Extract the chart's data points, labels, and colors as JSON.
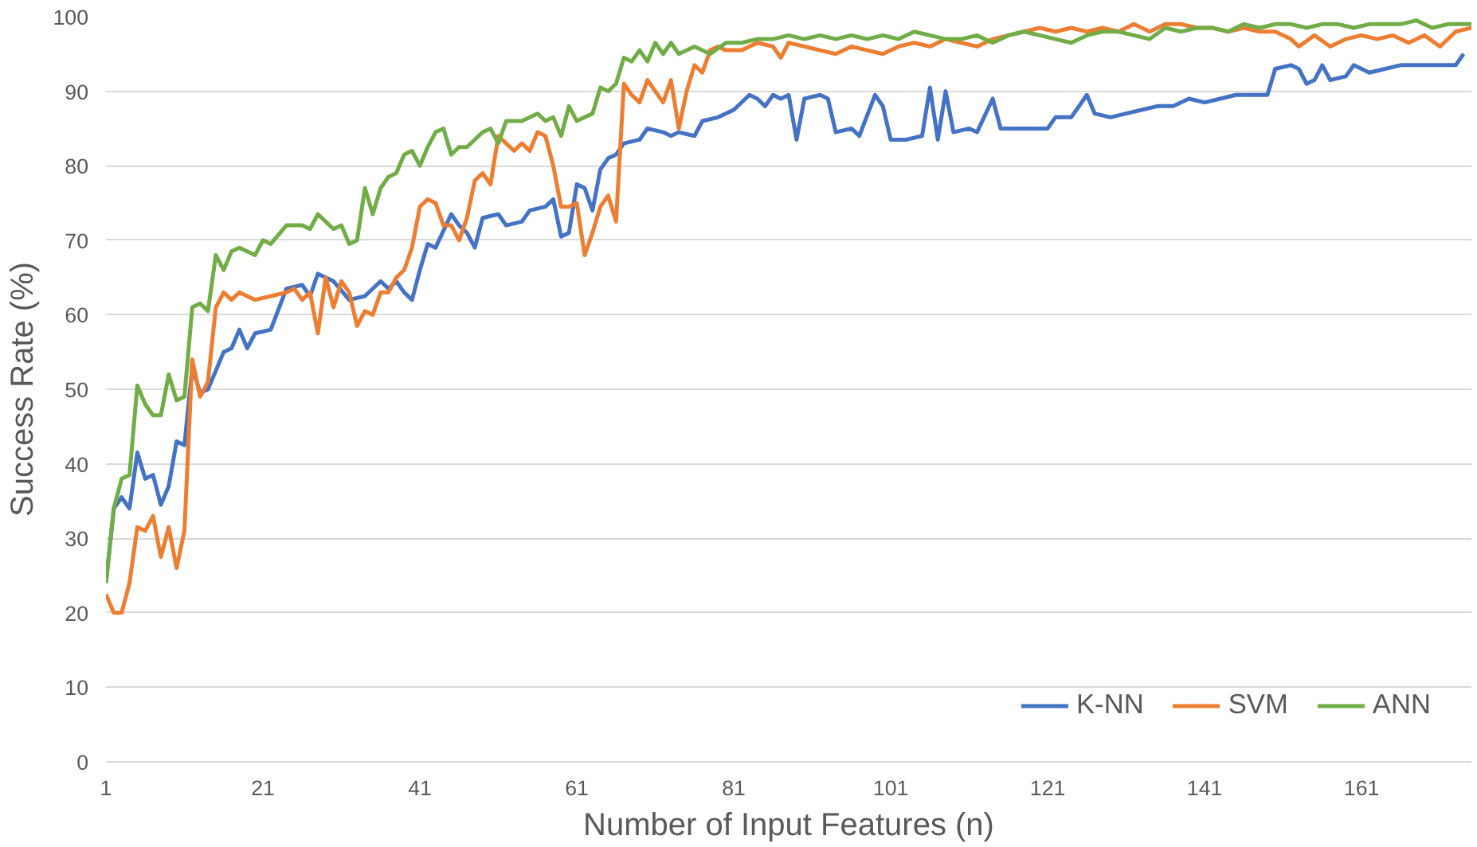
{
  "chart_data": {
    "type": "line",
    "xlabel": "Number of Input Features (n)",
    "ylabel": "Success Rate (%)",
    "xlim": [
      1,
      175
    ],
    "xticks": [
      1,
      21,
      41,
      61,
      81,
      101,
      121,
      141,
      161
    ],
    "ylim": [
      0,
      100
    ],
    "yticks": [
      0,
      10,
      20,
      30,
      40,
      50,
      60,
      70,
      80,
      90,
      100
    ],
    "grid": "y",
    "legend": "bottom right",
    "line_style": "solid",
    "marker": "none",
    "series": [
      {
        "name": "K-NN",
        "color": "#4472c4",
        "x": [
          1,
          2,
          3,
          4,
          5,
          6,
          7,
          8,
          9,
          10,
          11,
          12,
          13,
          14,
          15,
          16,
          17,
          18,
          19,
          20,
          22,
          24,
          26,
          27,
          28,
          30,
          32,
          34,
          36,
          37,
          38,
          39,
          40,
          41,
          42,
          43,
          45,
          46,
          47,
          48,
          49,
          51,
          52,
          54,
          55,
          57,
          58,
          59,
          60,
          61,
          62,
          63,
          64,
          65,
          66,
          67,
          69,
          70,
          72,
          73,
          74,
          76,
          77,
          79,
          81,
          83,
          84,
          85,
          86,
          87,
          88,
          89,
          90,
          92,
          93,
          94,
          96,
          97,
          99,
          100,
          101,
          103,
          105,
          106,
          107,
          108,
          109,
          111,
          112,
          114,
          115,
          117,
          119,
          121,
          122,
          124,
          126,
          127,
          129,
          131,
          133,
          135,
          137,
          139,
          141,
          143,
          145,
          149,
          150,
          152,
          153,
          154,
          155,
          156,
          157,
          159,
          160,
          162,
          164,
          166,
          170,
          173,
          174
        ],
        "values": [
          24,
          34,
          35.5,
          34,
          41.5,
          38,
          38.5,
          34.5,
          37,
          43,
          42.5,
          53,
          49.5,
          50,
          52.5,
          55,
          55.5,
          58,
          55.5,
          57.5,
          58,
          63.5,
          64,
          62.5,
          65.5,
          64.5,
          62,
          62.5,
          64.5,
          63.5,
          64.5,
          63,
          62,
          66,
          69.5,
          69,
          73.5,
          72,
          71,
          69,
          73,
          73.5,
          72,
          72.5,
          74,
          74.5,
          75.5,
          70.5,
          71,
          77.5,
          77,
          74,
          79.5,
          81,
          81.5,
          83,
          83.5,
          85,
          84.5,
          84,
          84.5,
          84,
          86,
          86.5,
          87.5,
          89.5,
          89,
          88,
          89.5,
          89,
          89.5,
          83.5,
          89,
          89.5,
          89,
          84.5,
          85,
          84,
          89.5,
          88,
          83.5,
          83.5,
          84,
          90.5,
          83.5,
          90,
          84.5,
          85,
          84.5,
          89,
          85,
          85,
          85,
          85,
          86.5,
          86.5,
          89.5,
          87,
          86.5,
          87,
          87.5,
          88,
          88,
          89,
          88.5,
          89,
          89.5,
          89.5,
          93,
          93.5,
          93,
          91,
          91.5,
          93.5,
          91.5,
          92,
          93.5,
          92.5,
          93,
          93.5,
          93.5,
          93.5,
          95
        ]
      },
      {
        "name": "SVM",
        "color": "#ed7d31",
        "x": [
          1,
          2,
          3,
          4,
          5,
          6,
          7,
          8,
          9,
          10,
          11,
          12,
          13,
          14,
          15,
          16,
          17,
          18,
          20,
          22,
          24,
          25,
          26,
          27,
          28,
          29,
          30,
          31,
          32,
          33,
          34,
          35,
          36,
          37,
          38,
          39,
          40,
          41,
          42,
          43,
          44,
          45,
          46,
          47,
          48,
          49,
          50,
          51,
          52,
          53,
          54,
          55,
          56,
          57,
          58,
          59,
          60,
          61,
          62,
          63,
          64,
          65,
          66,
          67,
          68,
          69,
          70,
          71,
          72,
          73,
          74,
          75,
          76,
          77,
          78,
          79,
          80,
          82,
          84,
          86,
          87,
          88,
          90,
          92,
          94,
          96,
          98,
          100,
          102,
          104,
          106,
          108,
          110,
          112,
          114,
          116,
          118,
          120,
          122,
          124,
          126,
          128,
          130,
          132,
          134,
          136,
          138,
          140,
          142,
          144,
          146,
          148,
          150,
          152,
          153,
          155,
          157,
          159,
          161,
          163,
          165,
          167,
          169,
          171,
          173,
          175
        ],
        "values": [
          22.5,
          20,
          20,
          24,
          31.5,
          31,
          33,
          27.5,
          31.5,
          26,
          31,
          54,
          49,
          51,
          61,
          63,
          62,
          63,
          62,
          62.5,
          63,
          63.5,
          62,
          63,
          57.5,
          65,
          61,
          64.5,
          63,
          58.5,
          60.5,
          60,
          63,
          63,
          65,
          66,
          69,
          74.5,
          75.5,
          75,
          72,
          72,
          70,
          73,
          78,
          79,
          77.5,
          84,
          83,
          82,
          83,
          82,
          84.5,
          84,
          80,
          74.5,
          74.5,
          75,
          68,
          71,
          74.5,
          76,
          72.5,
          91,
          89.5,
          88.5,
          91.5,
          90,
          88.5,
          91.5,
          85,
          90,
          93.5,
          92.5,
          95.5,
          96,
          95.5,
          95.5,
          96.5,
          96,
          94.5,
          96.5,
          96,
          95.5,
          95,
          96,
          95.5,
          95,
          96,
          96.5,
          96,
          97,
          96.5,
          96,
          97,
          97.5,
          98,
          98.5,
          98,
          98.5,
          98,
          98.5,
          98,
          99,
          98,
          99,
          99,
          98.5,
          98.5,
          98,
          98.5,
          98,
          98,
          97,
          96,
          97.5,
          96,
          97,
          97.5,
          97,
          97.5,
          96.5,
          97.5,
          96,
          98,
          98.5
        ]
      },
      {
        "name": "ANN",
        "color": "#70ad47",
        "x": [
          1,
          2,
          3,
          4,
          5,
          6,
          7,
          8,
          9,
          10,
          11,
          12,
          13,
          14,
          15,
          16,
          17,
          18,
          19,
          20,
          21,
          22,
          24,
          26,
          27,
          28,
          30,
          31,
          32,
          33,
          34,
          35,
          36,
          37,
          38,
          39,
          40,
          41,
          42,
          43,
          44,
          45,
          46,
          47,
          49,
          50,
          51,
          52,
          54,
          56,
          57,
          58,
          59,
          60,
          61,
          62,
          63,
          64,
          65,
          66,
          67,
          68,
          69,
          70,
          71,
          72,
          73,
          74,
          76,
          78,
          80,
          82,
          84,
          86,
          88,
          90,
          92,
          94,
          96,
          98,
          100,
          102,
          104,
          106,
          108,
          110,
          112,
          114,
          116,
          118,
          120,
          122,
          124,
          126,
          128,
          130,
          132,
          134,
          136,
          138,
          140,
          142,
          144,
          146,
          148,
          150,
          152,
          154,
          156,
          158,
          160,
          162,
          164,
          166,
          168,
          170,
          172,
          174,
          175
        ],
        "values": [
          24,
          34,
          38,
          38.5,
          50.5,
          48,
          46.5,
          46.5,
          52,
          48.5,
          49,
          61,
          61.5,
          60.5,
          68,
          66,
          68.5,
          69,
          68.5,
          68,
          70,
          69.5,
          72,
          72,
          71.5,
          73.5,
          71.5,
          72,
          69.5,
          70,
          77,
          73.5,
          77,
          78.5,
          79,
          81.5,
          82,
          80,
          82.5,
          84.5,
          85,
          81.5,
          82.5,
          82.5,
          84.5,
          85,
          83,
          86,
          86,
          87,
          86,
          86.5,
          84,
          88,
          86,
          86.5,
          87,
          90.5,
          90,
          91,
          94.5,
          94,
          95.5,
          94,
          96.5,
          95,
          96.5,
          95,
          96,
          95,
          96.5,
          96.5,
          97,
          97,
          97.5,
          97,
          97.5,
          97,
          97.5,
          97,
          97.5,
          97,
          98,
          97.5,
          97,
          97,
          97.5,
          96.5,
          97.5,
          98,
          97.5,
          97,
          96.5,
          97.5,
          98,
          98,
          97.5,
          97,
          98.5,
          98,
          98.5,
          98.5,
          98,
          99,
          98.5,
          99,
          99,
          98.5,
          99,
          99,
          98.5,
          99,
          99,
          99,
          99.5,
          98.5,
          99,
          99,
          99
        ]
      }
    ]
  }
}
